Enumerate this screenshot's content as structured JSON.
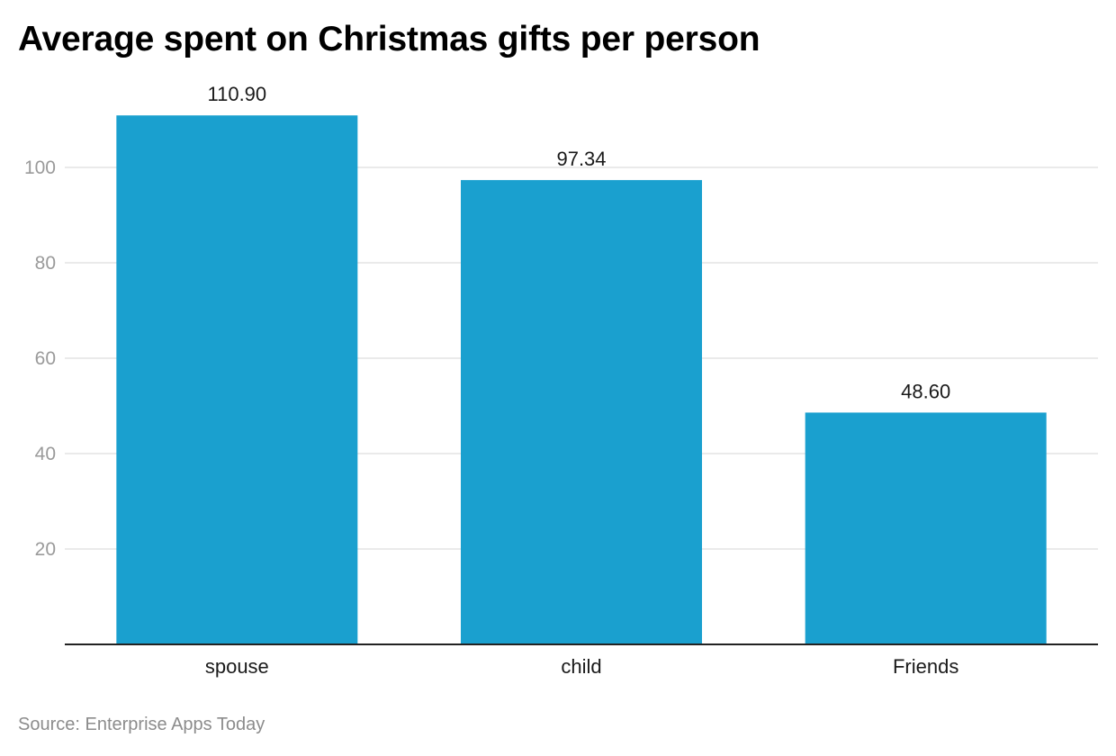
{
  "chart_data": {
    "type": "bar",
    "title": "Average spent on Christmas gifts per person",
    "categories": [
      "spouse",
      "child",
      "Friends"
    ],
    "values": [
      110.9,
      97.34,
      48.6
    ],
    "value_labels": [
      "110.90",
      "97.34",
      "48.60"
    ],
    "yticks": [
      20,
      40,
      60,
      80,
      100
    ],
    "ylim": [
      0,
      115
    ],
    "grid": true,
    "bar_color": "#1aa0cf",
    "source": "Source: Enterprise Apps Today"
  }
}
